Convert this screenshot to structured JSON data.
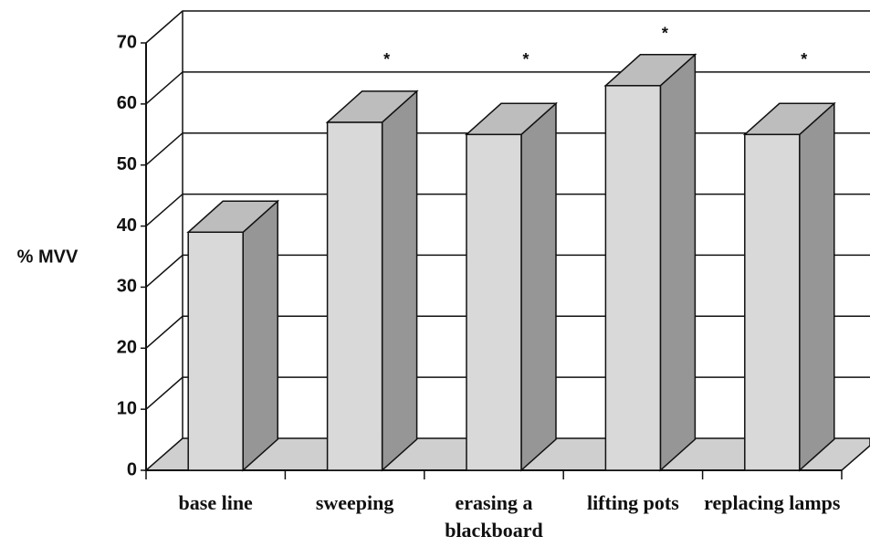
{
  "chart_data": {
    "type": "bar3d",
    "y_label": "% MVV",
    "categories": [
      "base line",
      "sweeping",
      "erasing a blackboard",
      "lifting pots",
      "replacing lamps"
    ],
    "values": [
      39,
      57,
      55,
      63,
      55
    ],
    "significance": [
      null,
      "*",
      "*",
      "*",
      "*"
    ],
    "ylim": [
      0,
      70
    ],
    "yticks": [
      0,
      10,
      20,
      30,
      40,
      50,
      60,
      70
    ],
    "grid": true,
    "colors": {
      "front": "#d9d9d9",
      "top": "#bdbdbd",
      "side": "#969696"
    }
  }
}
